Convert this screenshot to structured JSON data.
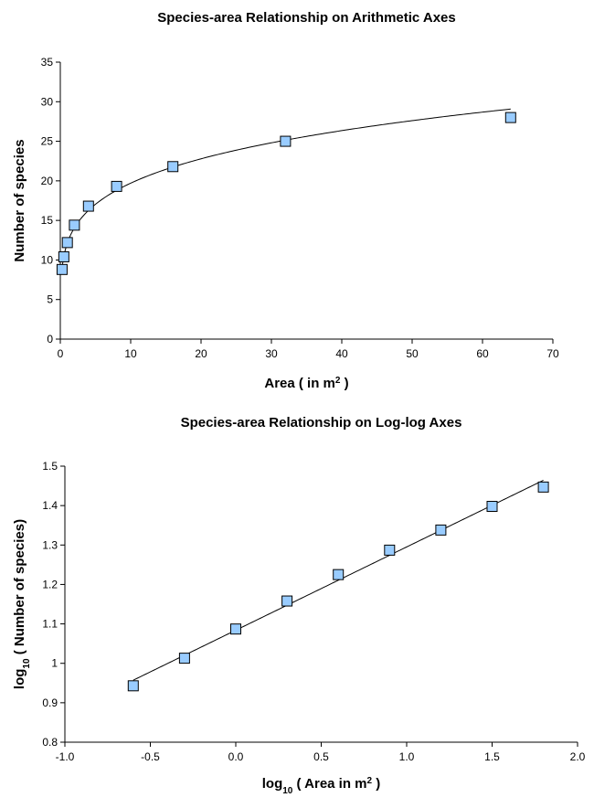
{
  "chart_data": [
    {
      "type": "scatter",
      "title": "Species-area Relationship on Arithmetic Axes",
      "xlabel": [
        {
          "text": "Area ( in m"
        },
        {
          "text": "2",
          "sup": true
        },
        {
          "text": " )"
        }
      ],
      "ylabel": [
        {
          "text": "Number of species"
        }
      ],
      "x": [
        0.25,
        0.5,
        1,
        2,
        4,
        8,
        16,
        32,
        64
      ],
      "values": [
        8.8,
        10.4,
        12.2,
        14.4,
        16.8,
        19.3,
        21.8,
        25,
        28
      ],
      "color": "#99ccff",
      "trendline": "power",
      "xlim": [
        0,
        70
      ],
      "xticks": [
        0,
        10,
        20,
        30,
        40,
        50,
        60,
        70
      ],
      "ylim": [
        0,
        35
      ],
      "yticks": [
        0,
        5,
        10,
        15,
        20,
        25,
        30,
        35
      ]
    },
    {
      "type": "scatter",
      "title": "Species-area Relationship on Log-log Axes",
      "xlabel": [
        {
          "text": "log"
        },
        {
          "text": "10",
          "sub": true
        },
        {
          "text": " ( Area in m"
        },
        {
          "text": "2",
          "sup": true
        },
        {
          "text": " )"
        }
      ],
      "ylabel": [
        {
          "text": "log"
        },
        {
          "text": "10",
          "sub": true
        },
        {
          "text": " ( Number of species)"
        }
      ],
      "x": [
        -0.6,
        -0.3,
        0,
        0.3,
        0.6,
        0.9,
        1.2,
        1.5,
        1.8
      ],
      "values": [
        0.943,
        1.013,
        1.087,
        1.158,
        1.225,
        1.287,
        1.338,
        1.398,
        1.447
      ],
      "color": "#99ccff",
      "trendline": "linear",
      "xlim": [
        -1,
        2
      ],
      "xticks": [
        {
          "value": -1,
          "label": "-1.0"
        },
        -0.5,
        {
          "value": 0,
          "label": "0.0"
        },
        0.5,
        {
          "value": 1,
          "label": "1.0"
        },
        1.5,
        {
          "value": 2,
          "label": "2.0"
        }
      ],
      "ylim": [
        0.8,
        1.5
      ],
      "yticks": [
        0.8,
        0.9,
        1,
        1.1,
        1.2,
        1.3,
        1.4,
        1.5
      ]
    }
  ]
}
